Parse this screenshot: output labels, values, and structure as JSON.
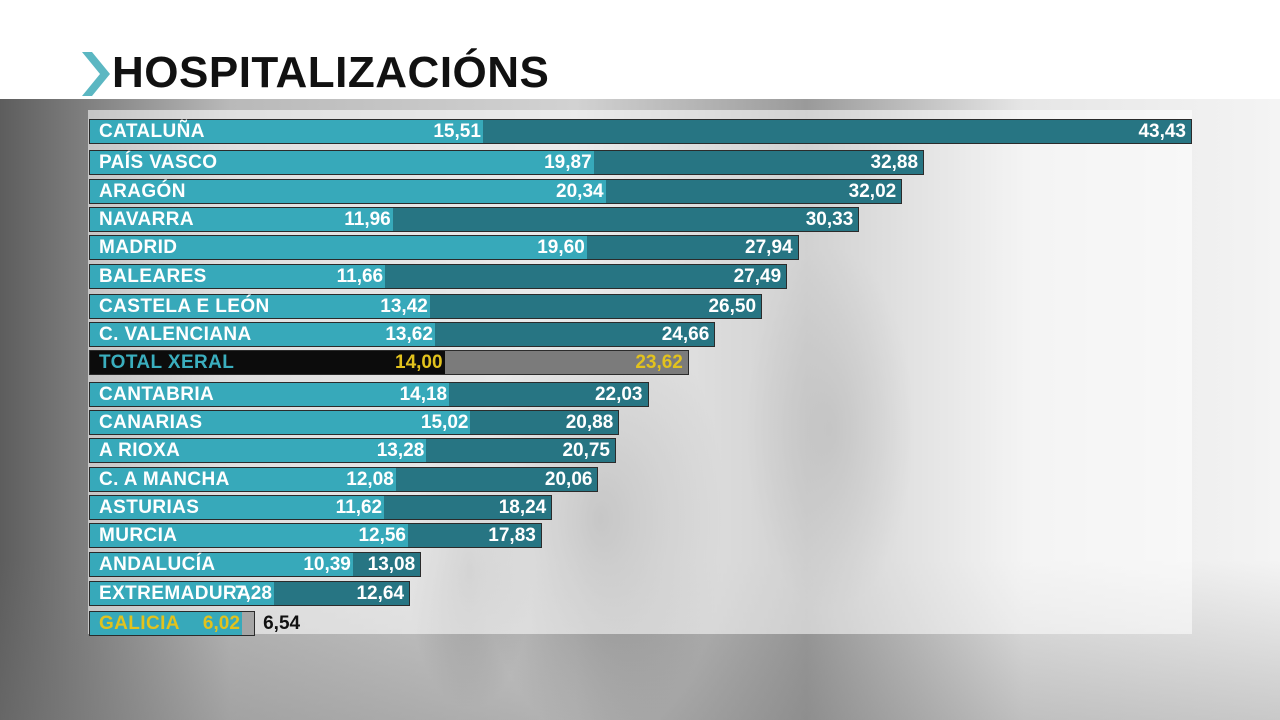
{
  "title": "HOSPITALIZACIÓNS",
  "colors": {
    "bar_light": "#37a9ba",
    "bar_dark": "#277583",
    "total_light": "#0c0c0c",
    "total_dark": "#7b7b7b",
    "highlight_text": "#e2c21d",
    "chevron": "#5bb7c2"
  },
  "chart_data": {
    "type": "bar",
    "orientation": "horizontal",
    "title": "HOSPITALIZACIÓNS",
    "categories": [
      "CATALUÑA",
      "PAÍS VASCO",
      "ARAGÓN",
      "NAVARRA",
      "MADRID",
      "BALEARES",
      "CASTELA E LEÓN",
      "C. VALENCIANA",
      "TOTAL XERAL",
      "CANTABRIA",
      "CANARIAS",
      "A RIOXA",
      "C. A MANCHA",
      "ASTURIAS",
      "MURCIA",
      "ANDALUCÍA",
      "EXTREMADURA",
      "GALICIA"
    ],
    "series": [
      {
        "values": [
          15.51,
          19.87,
          20.34,
          11.96,
          19.6,
          11.66,
          13.42,
          13.62,
          14.0,
          14.18,
          15.02,
          13.28,
          12.08,
          11.62,
          12.56,
          10.39,
          7.28,
          6.02
        ]
      },
      {
        "values": [
          43.43,
          32.88,
          32.02,
          30.33,
          27.94,
          27.49,
          26.5,
          24.66,
          23.62,
          22.03,
          20.88,
          20.75,
          20.06,
          18.24,
          17.83,
          13.08,
          12.64,
          6.54
        ]
      }
    ],
    "value_labels": [
      [
        "15,51",
        "43,43"
      ],
      [
        "19,87",
        "32,88"
      ],
      [
        "20,34",
        "32,02"
      ],
      [
        "11,96",
        "30,33"
      ],
      [
        "19,60",
        "27,94"
      ],
      [
        "11,66",
        "27,49"
      ],
      [
        "13,42",
        "26,50"
      ],
      [
        "13,62",
        "24,66"
      ],
      [
        "14,00",
        "23,62"
      ],
      [
        "14,18",
        "22,03"
      ],
      [
        "15,02",
        "20,88"
      ],
      [
        "13,28",
        "20,75"
      ],
      [
        "12,08",
        "20,06"
      ],
      [
        "11,62",
        "18,24"
      ],
      [
        "12,56",
        "17,83"
      ],
      [
        "10,39",
        "13,08"
      ],
      [
        "7,28",
        "12,64"
      ],
      [
        "6,02",
        "6,54"
      ]
    ],
    "highlighted": [
      "TOTAL XERAL",
      "GALICIA"
    ],
    "xlim": [
      0,
      43.43
    ]
  }
}
